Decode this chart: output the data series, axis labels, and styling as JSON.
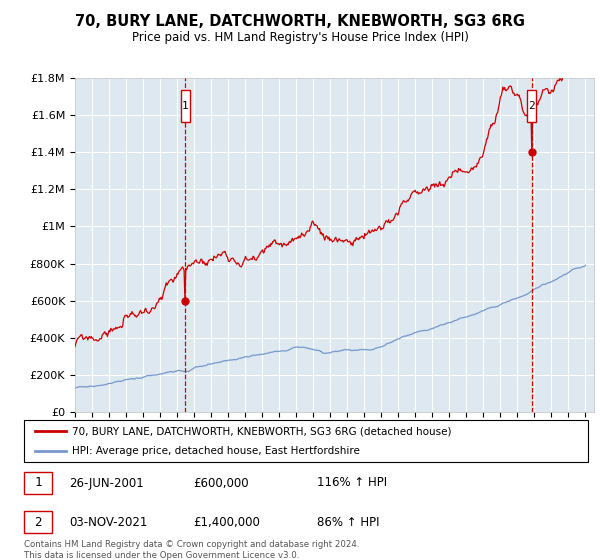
{
  "title": "70, BURY LANE, DATCHWORTH, KNEBWORTH, SG3 6RG",
  "subtitle": "Price paid vs. HM Land Registry's House Price Index (HPI)",
  "legend_line1": "70, BURY LANE, DATCHWORTH, KNEBWORTH, SG3 6RG (detached house)",
  "legend_line2": "HPI: Average price, detached house, East Hertfordshire",
  "sale1_date": "26-JUN-2001",
  "sale1_price": "£600,000",
  "sale1_hpi": "116% ↑ HPI",
  "sale1_year": 2001.48,
  "sale1_value": 600000,
  "sale2_date": "03-NOV-2021",
  "sale2_price": "£1,400,000",
  "sale2_hpi": "86% ↑ HPI",
  "sale2_year": 2021.84,
  "sale2_value": 1400000,
  "xmin": 1995,
  "xmax": 2025.5,
  "ymin": 0,
  "ymax": 1800000,
  "red_color": "#cc0000",
  "blue_color": "#7799cc",
  "plot_bg_color": "#dde8f0",
  "footer": "Contains HM Land Registry data © Crown copyright and database right 2024.\nThis data is licensed under the Open Government Licence v3.0.",
  "yticks": [
    0,
    200000,
    400000,
    600000,
    800000,
    1000000,
    1200000,
    1400000,
    1600000,
    1800000
  ],
  "ytick_labels": [
    "£0",
    "£200K",
    "£400K",
    "£600K",
    "£800K",
    "£1M",
    "£1.2M",
    "£1.4M",
    "£1.6M",
    "£1.8M"
  ]
}
